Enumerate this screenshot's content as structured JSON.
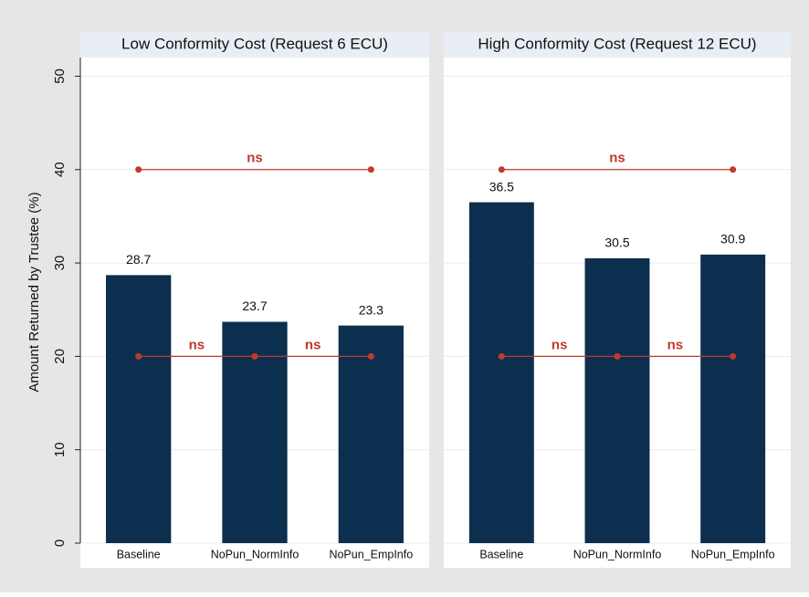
{
  "chart_data": {
    "type": "bar",
    "ylabel": "Amount Returned by Trustee (%)",
    "categories": [
      "Baseline",
      "NoPun_NormInfo",
      "NoPun_EmpInfo"
    ],
    "ylim": [
      0,
      52
    ],
    "yticks": [
      0,
      10,
      20,
      30,
      40,
      50
    ],
    "grid": true,
    "color": "#0d2f4f",
    "annotation_color": "#c0392b",
    "panels": [
      {
        "title": "Low Conformity Cost (Request 6 ECU)",
        "values": [
          28.7,
          23.7,
          23.3
        ],
        "annotations": [
          {
            "text": "ns",
            "from": "Baseline",
            "to": "NoPun_EmpInfo",
            "y": 40
          },
          {
            "text": "ns",
            "from": "Baseline",
            "to": "NoPun_NormInfo",
            "y": 20
          },
          {
            "text": "ns",
            "from": "NoPun_NormInfo",
            "to": "NoPun_EmpInfo",
            "y": 20
          }
        ]
      },
      {
        "title": "High Conformity Cost (Request 12 ECU)",
        "values": [
          36.5,
          30.5,
          30.9
        ],
        "annotations": [
          {
            "text": "ns",
            "from": "Baseline",
            "to": "NoPun_EmpInfo",
            "y": 40
          },
          {
            "text": "ns",
            "from": "Baseline",
            "to": "NoPun_NormInfo",
            "y": 20
          },
          {
            "text": "ns",
            "from": "NoPun_NormInfo",
            "to": "NoPun_EmpInfo",
            "y": 20
          }
        ]
      }
    ]
  }
}
